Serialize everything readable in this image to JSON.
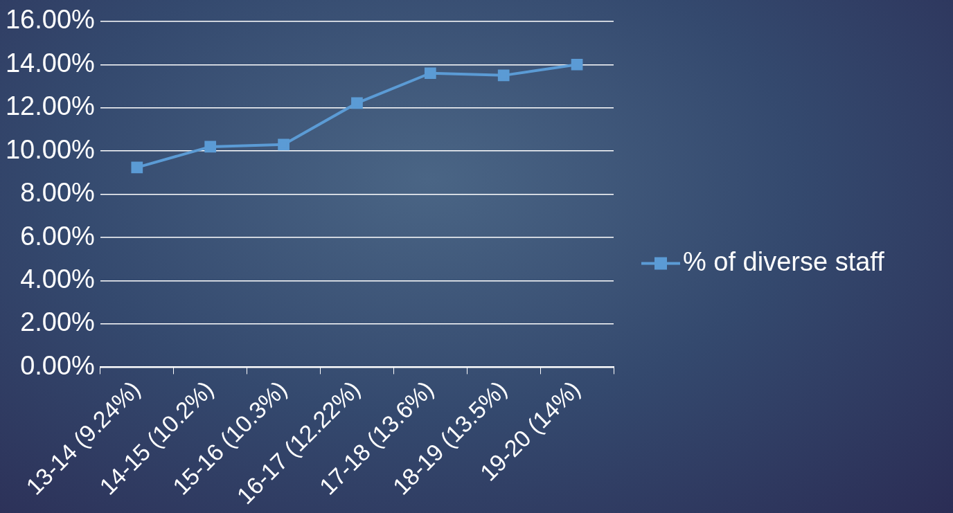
{
  "chart_data": {
    "type": "line",
    "categories": [
      "13-14 (9.24%)",
      "14-15 (10.2%)",
      "15-16 (10.3%)",
      "16-17 (12.22%)",
      "17-18 (13.6%)",
      "18-19 (13.5%)",
      "19-20 (14%)"
    ],
    "series": [
      {
        "name": "% of diverse staff",
        "color": "#5b9bd5",
        "values": [
          9.24,
          10.2,
          10.3,
          12.22,
          13.6,
          13.5,
          14
        ]
      }
    ],
    "ylim": [
      0,
      16
    ],
    "yticks": [
      {
        "value": 0,
        "label": "0.00%"
      },
      {
        "value": 2,
        "label": "2.00%"
      },
      {
        "value": 4,
        "label": "4.00%"
      },
      {
        "value": 6,
        "label": "6.00%"
      },
      {
        "value": 8,
        "label": "8.00%"
      },
      {
        "value": 10,
        "label": "10.00%"
      },
      {
        "value": 12,
        "label": "12.00%"
      },
      {
        "value": 14,
        "label": "14.00%"
      },
      {
        "value": 16,
        "label": "16.00%"
      }
    ],
    "grid": "y",
    "legend": "right",
    "marker": "square",
    "line_style": "solid"
  }
}
